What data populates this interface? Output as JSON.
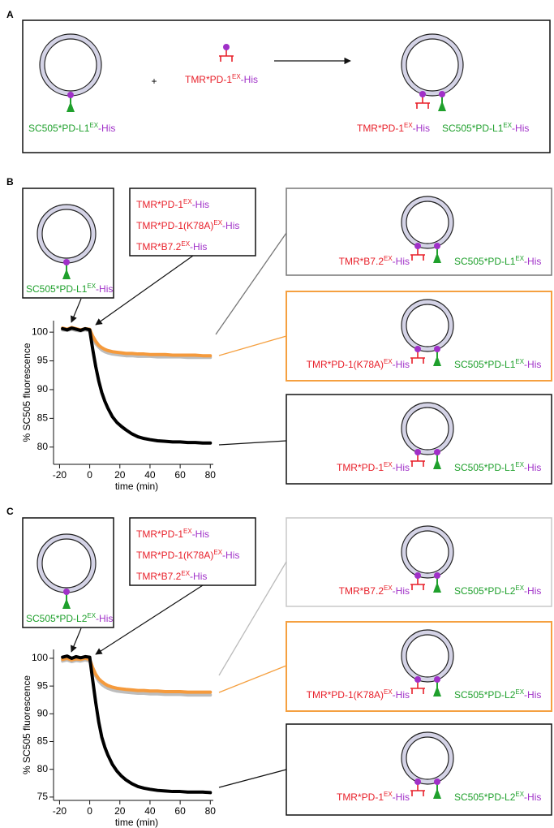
{
  "panels": [
    {
      "letter": "A",
      "vesicle_label": {
        "text": "SC505*PD-L1",
        "sup": "EX",
        "tail": "-His"
      },
      "plus": "+",
      "ligand_label": {
        "text": "TMR*PD-1",
        "sup": "EX",
        "tail": "-His"
      },
      "bound_receptor_label": {
        "text": "TMR*PD-1",
        "sup": "EX",
        "tail": "-His"
      },
      "bound_ligand_label": {
        "text": "SC505*PD-L1",
        "sup": "EX",
        "tail": "-His"
      }
    },
    {
      "letter": "B",
      "vesicle_label": {
        "text": "SC505*PD-L1",
        "sup": "EX",
        "tail": "-His"
      },
      "chart_data": {
        "type": "line",
        "ylabel": "% SC505 fluorescence",
        "xlabel": "time (min)",
        "xlim": [
          -24,
          82
        ],
        "xticks": [
          -20,
          0,
          20,
          40,
          60,
          80
        ],
        "ylim": [
          77,
          102
        ],
        "yticks": [
          80,
          85,
          90,
          95,
          100
        ],
        "x": [
          -18,
          -15,
          -12,
          -9,
          -6,
          -3,
          0,
          2,
          4,
          6,
          8,
          10,
          12,
          15,
          18,
          21,
          24,
          28,
          32,
          36,
          40,
          45,
          50,
          55,
          60,
          65,
          70,
          75,
          80
        ],
        "series": [
          {
            "name": {
              "text": "TMR*PD-1",
              "sup": "EX",
              "tail": "-His"
            },
            "color": "#000000",
            "values": [
              100.6,
              100.4,
              100.7,
              100.5,
              100.3,
              100.6,
              100.4,
              97,
              94,
              91.5,
              89.5,
              88,
              86.8,
              85.3,
              84.3,
              83.6,
              83,
              82.3,
              81.8,
              81.5,
              81.3,
              81.1,
              81,
              80.9,
              80.9,
              80.8,
              80.8,
              80.7,
              80.7
            ]
          },
          {
            "name": {
              "text": "TMR*PD-1(K78A)",
              "sup": "EX",
              "tail": "-His"
            },
            "color": "#f59a3c",
            "values": [
              100.7,
              100.5,
              100.8,
              100.6,
              100.4,
              100.6,
              100.5,
              99.3,
              98.4,
              97.7,
              97.3,
              97,
              96.8,
              96.6,
              96.5,
              96.4,
              96.3,
              96.3,
              96.2,
              96.2,
              96.1,
              96.1,
              96.1,
              96,
              96,
              96,
              96,
              95.9,
              95.9
            ]
          },
          {
            "name": {
              "text": "TMR*B7.2",
              "sup": "EX",
              "tail": "-His"
            },
            "color": "#bdbdbd",
            "values": [
              100.4,
              100.3,
              100.5,
              100.3,
              100.2,
              100.4,
              100.2,
              99,
              98,
              97.4,
              96.9,
              96.6,
              96.4,
              96.2,
              96.1,
              96,
              95.9,
              95.9,
              95.8,
              95.8,
              95.8,
              95.7,
              95.7,
              95.7,
              95.7,
              95.6,
              95.6,
              95.6,
              95.6
            ]
          }
        ]
      }
    },
    {
      "letter": "C",
      "vesicle_label": {
        "text": "SC505*PD-L2",
        "sup": "EX",
        "tail": "-His"
      },
      "chart_data": {
        "type": "line",
        "ylabel": "% SC505 fluorescence",
        "xlabel": "time (min)",
        "xlim": [
          -24,
          82
        ],
        "xticks": [
          -20,
          0,
          20,
          40,
          60,
          80
        ],
        "ylim": [
          74.4,
          101.6
        ],
        "yticks": [
          75,
          80,
          85,
          90,
          95,
          100
        ],
        "x": [
          -18,
          -15,
          -12,
          -9,
          -6,
          -3,
          0,
          2,
          4,
          6,
          8,
          10,
          12,
          15,
          18,
          21,
          24,
          28,
          32,
          36,
          40,
          45,
          50,
          55,
          60,
          65,
          70,
          75,
          80
        ],
        "series": [
          {
            "name": {
              "text": "TMR*PD-1",
              "sup": "EX",
              "tail": "-His"
            },
            "color": "#000000",
            "values": [
              100.2,
              100.4,
              100,
              100.3,
              100.1,
              100.3,
              100.2,
              96,
              92,
              88.5,
              85.8,
              84,
              82.6,
              80.9,
              79.7,
              78.8,
              78.1,
              77.4,
              76.9,
              76.6,
              76.4,
              76.2,
              76.1,
              76,
              76,
              75.9,
              75.9,
              75.9,
              75.8
            ]
          },
          {
            "name": {
              "text": "TMR*PD-1(K78A)",
              "sup": "EX",
              "tail": "-His"
            },
            "color": "#f59a3c",
            "values": [
              99.8,
              100,
              99.7,
              99.9,
              99.8,
              100,
              99.8,
              98.3,
              97.1,
              96.3,
              95.8,
              95.4,
              95.1,
              94.8,
              94.6,
              94.5,
              94.4,
              94.3,
              94.2,
              94.2,
              94.1,
              94.1,
              94,
              94,
              94,
              93.9,
              93.9,
              93.9,
              93.9
            ]
          },
          {
            "name": {
              "text": "TMR*B7.2",
              "sup": "EX",
              "tail": "-His"
            },
            "color": "#bdbdbd",
            "values": [
              99.5,
              99.7,
              99.4,
              99.6,
              99.5,
              99.7,
              99.5,
              98,
              96.8,
              95.9,
              95.3,
              94.9,
              94.6,
              94.3,
              94.1,
              94,
              93.9,
              93.8,
              93.7,
              93.7,
              93.6,
              93.6,
              93.5,
              93.5,
              93.5,
              93.4,
              93.4,
              93.4,
              93.4
            ]
          }
        ]
      }
    }
  ]
}
